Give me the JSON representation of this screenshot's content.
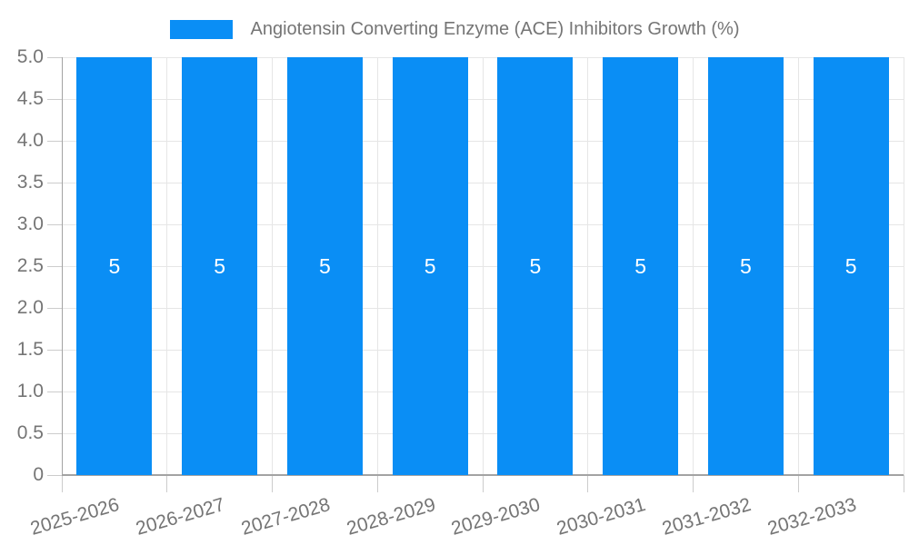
{
  "chart_data": {
    "type": "bar",
    "title": "Angiotensin Converting Enzyme (ACE) Inhibitors Growth (%)",
    "legend": {
      "position": "top-center",
      "label": "Angiotensin Converting Enzyme (ACE) Inhibitors Growth (%)"
    },
    "categories": [
      "2025-2026",
      "2026-2027",
      "2027-2028",
      "2028-2029",
      "2029-2030",
      "2030-2031",
      "2031-2032",
      "2032-2033"
    ],
    "values": [
      5,
      5,
      5,
      5,
      5,
      5,
      5,
      5
    ],
    "bar_value_labels": [
      "5",
      "5",
      "5",
      "5",
      "5",
      "5",
      "5",
      "5"
    ],
    "xlabel": "",
    "ylabel": "",
    "ylim": [
      0,
      5
    ],
    "ytick_interval": 0.5,
    "ytick_labels": [
      "0",
      "0.5",
      "1.0",
      "1.5",
      "2.0",
      "2.5",
      "3.0",
      "3.5",
      "4.0",
      "4.5",
      "5.0"
    ],
    "grid": true,
    "colors": {
      "bar": "#0a8ef5",
      "grid_line": "#e6e6e6",
      "axis_line": "#a3a3a3",
      "tick": "#cccccc",
      "label_text": "#757575",
      "bar_label_text": "#ffffff",
      "background": "#ffffff"
    }
  }
}
